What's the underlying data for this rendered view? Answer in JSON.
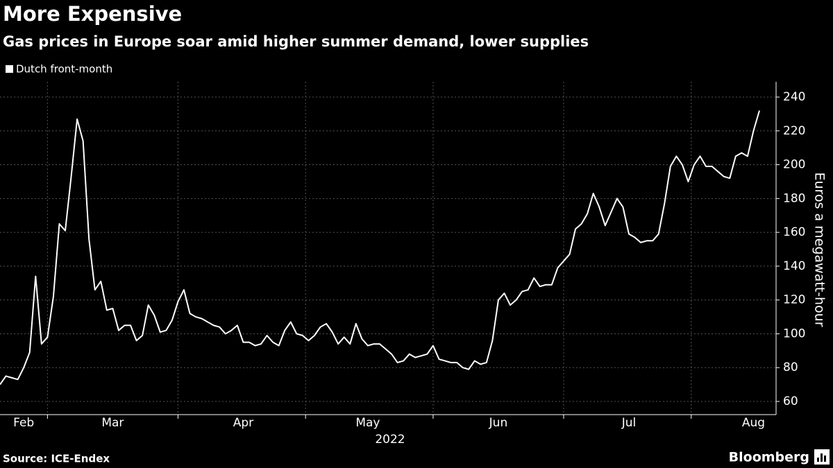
{
  "chart_data": {
    "type": "line",
    "title": "More Expensive",
    "subtitle": "Gas prices in Europe soar amid higher summer demand, lower supplies",
    "y_label": "Euros a megawatt-hour",
    "year_label": "2022",
    "source": "Source: ICE-Endex",
    "brand": "Bloomberg",
    "categories": [
      null,
      null,
      null,
      null,
      "Feb",
      null,
      null,
      null,
      null,
      null,
      null,
      null,
      null,
      null,
      null,
      null,
      null,
      null,
      null,
      "Mar",
      null,
      null,
      null,
      null,
      null,
      null,
      null,
      null,
      null,
      null,
      null,
      null,
      null,
      null,
      null,
      null,
      null,
      null,
      null,
      null,
      null,
      "Apr",
      null,
      null,
      null,
      null,
      null,
      null,
      null,
      null,
      null,
      null,
      null,
      null,
      null,
      null,
      null,
      null,
      null,
      null,
      null,
      null,
      "May",
      null,
      null,
      null,
      null,
      null,
      null,
      null,
      null,
      null,
      null,
      null,
      null,
      null,
      null,
      null,
      null,
      null,
      null,
      null,
      null,
      null,
      "Jun",
      null,
      null,
      null,
      null,
      null,
      null,
      null,
      null,
      null,
      null,
      null,
      null,
      null,
      null,
      null,
      null,
      null,
      null,
      null,
      null,
      null,
      "Jul",
      null,
      null,
      null,
      null,
      null,
      null,
      null,
      null,
      null,
      null,
      null,
      null,
      null,
      null,
      null,
      null,
      null,
      null,
      null,
      null,
      "Aug",
      null
    ],
    "series": [
      {
        "name": "Dutch front-month",
        "color": "#ffffff",
        "values": [
          70,
          75,
          74,
          73,
          80,
          89,
          134,
          94,
          98,
          122,
          165,
          161,
          193,
          227,
          214,
          156,
          126,
          131,
          114,
          115,
          102,
          105,
          105,
          96,
          99,
          117,
          111,
          101,
          102,
          108,
          119,
          126,
          112,
          110,
          109,
          107,
          105,
          104,
          100,
          102,
          105,
          95,
          95,
          93,
          94,
          99,
          95,
          93,
          102,
          107,
          100,
          99,
          96,
          99,
          104,
          106,
          101,
          94,
          98,
          94,
          106,
          97,
          93,
          94,
          94,
          91,
          88,
          83,
          84,
          88,
          86,
          87,
          88,
          93,
          85,
          84,
          83,
          83,
          80,
          79,
          84,
          82,
          83,
          96,
          120,
          124,
          117,
          120,
          125,
          126,
          133,
          128,
          129,
          129,
          139,
          143,
          147,
          162,
          165,
          171,
          183,
          175,
          164,
          172,
          180,
          175,
          159,
          157,
          154,
          155,
          155,
          159,
          177,
          199,
          205,
          200,
          190,
          200,
          205,
          199,
          199,
          196,
          193,
          192,
          205,
          207,
          205,
          220,
          232
        ]
      }
    ],
    "ylim": [
      60,
      240
    ],
    "yticks": [
      60,
      80,
      100,
      120,
      140,
      160,
      180,
      200,
      220,
      240
    ],
    "grid": true
  }
}
